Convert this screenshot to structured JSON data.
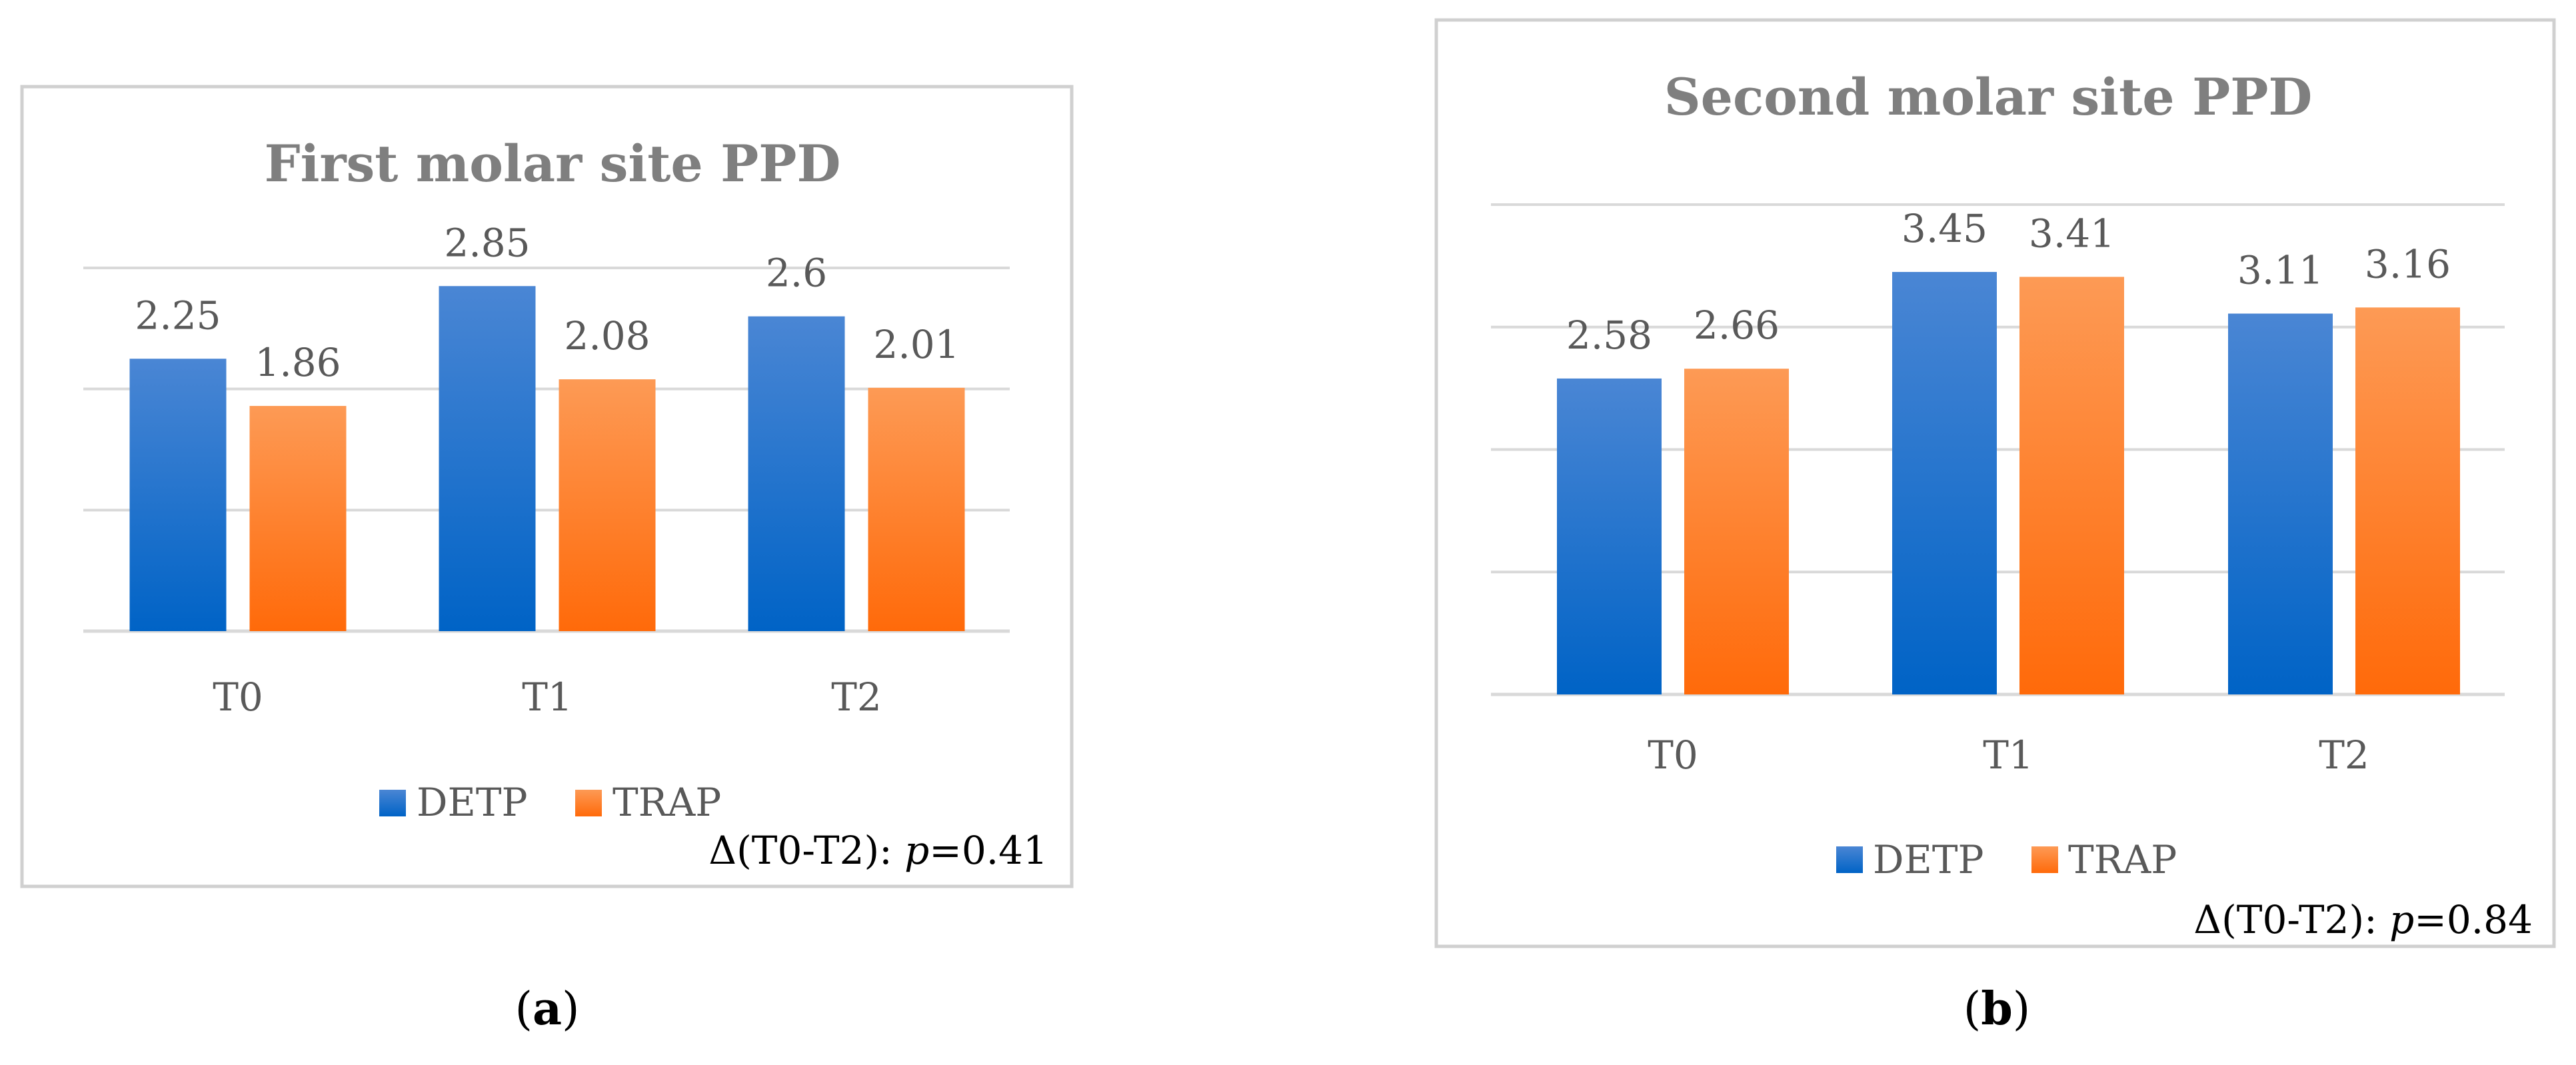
{
  "chart_data": [
    {
      "type": "bar",
      "panel": "(a)",
      "title": "First molar site PPD",
      "categories": [
        "T0",
        "T1",
        "T2"
      ],
      "series": [
        {
          "name": "DETP",
          "values": [
            2.25,
            2.85,
            2.6
          ],
          "labels": [
            "2.25",
            "2.85",
            "2.6"
          ]
        },
        {
          "name": "TRAP",
          "values": [
            1.86,
            2.08,
            2.01
          ],
          "labels": [
            "1.86",
            "2.08",
            "2.01"
          ]
        }
      ],
      "ylim": [
        0,
        3
      ],
      "gridlines": [
        0,
        1,
        2,
        3
      ],
      "grid": true,
      "legend": "bottom-center",
      "annotation": {
        "prefix": "Δ(T0-T2): ",
        "p_label": "p",
        "value": "=0.41"
      }
    },
    {
      "type": "bar",
      "panel": "(b)",
      "title": "Second molar site PPD",
      "categories": [
        "T0",
        "T1",
        "T2"
      ],
      "series": [
        {
          "name": "DETP",
          "values": [
            2.58,
            3.45,
            3.11
          ],
          "labels": [
            "2.58",
            "3.45",
            "3.11"
          ]
        },
        {
          "name": "TRAP",
          "values": [
            2.66,
            3.41,
            3.16
          ],
          "labels": [
            "2.66",
            "3.41",
            "3.16"
          ]
        }
      ],
      "ylim": [
        0,
        4
      ],
      "gridlines": [
        0,
        1,
        2,
        3,
        4
      ],
      "grid": true,
      "legend": "bottom-center",
      "annotation": {
        "prefix": "Δ(T0-T2): ",
        "p_label": "p",
        "value": "=0.84"
      }
    }
  ],
  "colors": {
    "detp_top": "#4a86d4",
    "detp_bottom": "#0063c6",
    "trap_top": "#fd9a55",
    "trap_bottom": "#ff6a0a",
    "title": "#7f7f7f",
    "label": "#595959",
    "grid": "#d9d9d9",
    "border": "#d0d0d0"
  },
  "captions": [
    {
      "open": "(",
      "letter": "a",
      "close": ")"
    },
    {
      "open": "(",
      "letter": "b",
      "close": ")"
    }
  ]
}
